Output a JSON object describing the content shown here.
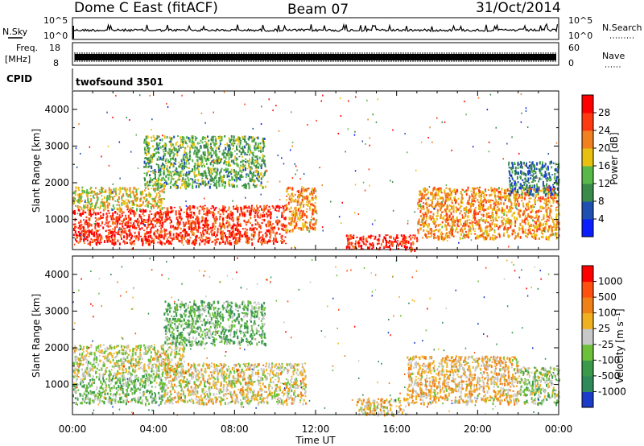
{
  "header": {
    "station": "Dome C East (fitACF)",
    "beam": "Beam 07",
    "date": "31/Oct/2014"
  },
  "nsky_panel": {
    "label": "N.Sky",
    "right_label": "N.Search",
    "ticks_left": [
      "10^5",
      "10^0"
    ],
    "ticks_right": [
      "10^5",
      "10^0"
    ]
  },
  "freq_panel": {
    "label_line1": "Freq.",
    "label_line2": "[MHz]",
    "right_label": "Nave",
    "ticks_left": [
      "18",
      "8"
    ],
    "ticks_right": [
      "60",
      "0"
    ]
  },
  "cpid_panel": {
    "label": "CPID",
    "program": "twofsound 3501"
  },
  "power_panel": {
    "ylabel": "Slant Range [km]",
    "yticks": [
      "4000",
      "3000",
      "2000",
      "1000"
    ],
    "colorbar_label": "Power [dB]",
    "colorbar_ticks": [
      "28",
      "24",
      "20",
      "16",
      "12",
      "8",
      "4"
    ],
    "colors": [
      "#0a1eff",
      "#1f4fb0",
      "#3a8a4a",
      "#58b84a",
      "#e8c010",
      "#f08020",
      "#ff3a10",
      "#ff0000"
    ]
  },
  "velocity_panel": {
    "ylabel": "Slant Range [km]",
    "yticks": [
      "4000",
      "3000",
      "2000",
      "1000"
    ],
    "colorbar_label": "Velocity  [m s⁻¹]",
    "colorbar_ticks": [
      "1000",
      "500",
      "100",
      "25",
      "-25",
      "-100",
      "-500",
      "-1000"
    ],
    "colors": [
      "#1a3cc8",
      "#2f8a5a",
      "#3a9a4a",
      "#6cc03a",
      "#c8c8c8",
      "#f0b020",
      "#f08018",
      "#ff5010",
      "#ff0000"
    ]
  },
  "x_axis": {
    "label": "Time UT",
    "ticks": [
      "00:00",
      "04:00",
      "08:00",
      "12:00",
      "16:00",
      "20:00",
      "00:00"
    ]
  },
  "chart_data": [
    {
      "type": "heatmap",
      "title": "Power",
      "xlabel": "Time UT",
      "ylabel": "Slant Range [km]",
      "xlim": [
        "00:00",
        "24:00"
      ],
      "ylim": [
        180,
        4500
      ],
      "colorbar": {
        "label": "Power [dB]",
        "range": [
          0,
          30
        ]
      },
      "regions": [
        {
          "t_start": 0.0,
          "t_end": 4.5,
          "range_min": 350,
          "range_max": 1300,
          "value": 26
        },
        {
          "t_start": 0.0,
          "t_end": 4.5,
          "range_min": 1300,
          "range_max": 1900,
          "value": 17
        },
        {
          "t_start": 3.5,
          "t_end": 9.5,
          "range_min": 1900,
          "range_max": 3300,
          "value": 12
        },
        {
          "t_start": 4.5,
          "t_end": 10.5,
          "range_min": 350,
          "range_max": 1400,
          "value": 25
        },
        {
          "t_start": 10.5,
          "t_end": 12.0,
          "range_min": 700,
          "range_max": 1900,
          "value": 20
        },
        {
          "t_start": 13.5,
          "t_end": 17.0,
          "range_min": 200,
          "range_max": 600,
          "value": 26
        },
        {
          "t_start": 17.0,
          "t_end": 24.0,
          "range_min": 500,
          "range_max": 1900,
          "value": 20
        },
        {
          "t_start": 21.5,
          "t_end": 24.0,
          "range_min": 1700,
          "range_max": 2600,
          "value": 8
        }
      ]
    },
    {
      "type": "heatmap",
      "title": "Velocity",
      "xlabel": "Time UT",
      "ylabel": "Slant Range [km]",
      "xlim": [
        "00:00",
        "24:00"
      ],
      "ylim": [
        180,
        4500
      ],
      "colorbar": {
        "label": "Velocity  [m s⁻¹]",
        "range": [
          -1000,
          1000
        ]
      },
      "regions": [
        {
          "t_start": 0.0,
          "t_end": 4.5,
          "range_min": 500,
          "range_max": 1300,
          "value": -200
        },
        {
          "t_start": 0.0,
          "t_end": 5.5,
          "range_min": 1300,
          "range_max": 2100,
          "value": 0
        },
        {
          "t_start": 4.5,
          "t_end": 9.5,
          "range_min": 2100,
          "range_max": 3300,
          "value": -300
        },
        {
          "t_start": 4.5,
          "t_end": 11.5,
          "range_min": 500,
          "range_max": 1600,
          "value": 80
        },
        {
          "t_start": 14.0,
          "t_end": 16.5,
          "range_min": 200,
          "range_max": 650,
          "value": 120
        },
        {
          "t_start": 16.5,
          "t_end": 22.0,
          "range_min": 500,
          "range_max": 1800,
          "value": 200
        },
        {
          "t_start": 22.0,
          "t_end": 24.0,
          "range_min": 500,
          "range_max": 1500,
          "value": -150
        }
      ]
    }
  ]
}
